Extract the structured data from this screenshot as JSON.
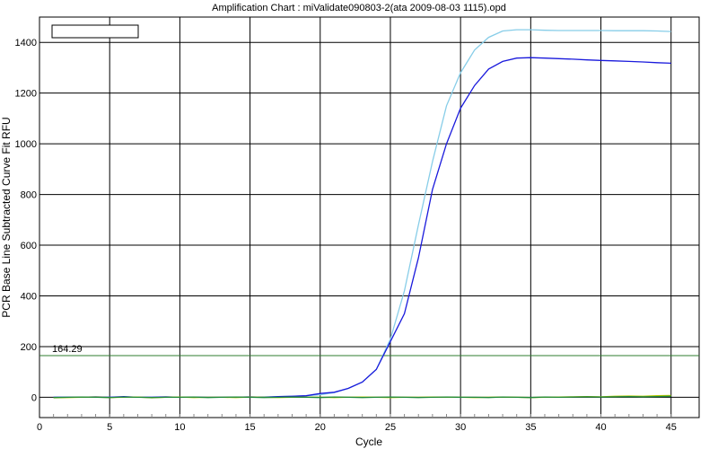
{
  "window": {
    "title": "Amplification Chart : miValidate090803-2(ata 2009-08-03 1115).opd"
  },
  "chart_data": {
    "type": "line",
    "title": "Amplification Chart : miValidate090803-2(ata 2009-08-03 1115).opd",
    "xlabel": "Cycle",
    "ylabel": "PCR Base Line Subtracted Curve Fit RFU",
    "xlim": [
      0,
      47
    ],
    "ylim": [
      -80,
      1500
    ],
    "x_ticks": [
      0,
      5,
      10,
      15,
      20,
      25,
      30,
      35,
      40,
      45
    ],
    "y_ticks": [
      0,
      200,
      400,
      600,
      800,
      1000,
      1200,
      1400
    ],
    "grid": true,
    "legend": "top-left (empty box)",
    "threshold": {
      "value": 164.29,
      "label": "164.29",
      "color": "#2f7d2f"
    },
    "series": [
      {
        "color": "#87cde8",
        "x": [
          1,
          2,
          3,
          4,
          5,
          6,
          7,
          8,
          9,
          10,
          11,
          12,
          13,
          14,
          15,
          16,
          17,
          18,
          19,
          20,
          21,
          22,
          23,
          24,
          25,
          26,
          27,
          28,
          29,
          30,
          31,
          32,
          33,
          34,
          35,
          36,
          37,
          38,
          39,
          40,
          41,
          42,
          43,
          44,
          45
        ],
        "values": [
          0,
          0,
          0,
          0,
          0,
          0,
          0,
          0,
          0,
          0,
          0,
          0,
          0,
          0,
          0,
          2,
          3,
          4,
          6,
          10,
          18,
          35,
          60,
          110,
          230,
          420,
          680,
          930,
          1150,
          1280,
          1370,
          1420,
          1445,
          1450,
          1450,
          1448,
          1447,
          1447,
          1447,
          1447,
          1446,
          1446,
          1446,
          1445,
          1443
        ]
      },
      {
        "color": "#1a1adc",
        "x": [
          1,
          2,
          3,
          4,
          5,
          6,
          7,
          8,
          9,
          10,
          11,
          12,
          13,
          14,
          15,
          16,
          17,
          18,
          19,
          20,
          21,
          22,
          23,
          24,
          25,
          26,
          27,
          28,
          29,
          30,
          31,
          32,
          33,
          34,
          35,
          36,
          37,
          38,
          39,
          40,
          41,
          42,
          43,
          44,
          45
        ],
        "values": [
          0,
          0,
          0,
          2,
          0,
          3,
          0,
          0,
          2,
          0,
          0,
          0,
          0,
          0,
          2,
          0,
          3,
          4,
          6,
          15,
          20,
          35,
          60,
          110,
          220,
          330,
          550,
          820,
          1000,
          1140,
          1230,
          1295,
          1325,
          1338,
          1340,
          1338,
          1336,
          1334,
          1331,
          1329,
          1327,
          1325,
          1323,
          1320,
          1318
        ]
      },
      {
        "color": "#b7c800",
        "x": [
          1,
          2,
          3,
          4,
          5,
          6,
          7,
          8,
          9,
          10,
          11,
          12,
          13,
          14,
          15,
          16,
          17,
          18,
          19,
          20,
          21,
          22,
          23,
          24,
          25,
          26,
          27,
          28,
          29,
          30,
          31,
          32,
          33,
          34,
          35,
          36,
          37,
          38,
          39,
          40,
          41,
          42,
          43,
          44,
          45
        ],
        "values": [
          -2,
          -1,
          0,
          1,
          -1,
          0,
          1,
          -2,
          0,
          1,
          -1,
          0,
          0,
          -1,
          1,
          0,
          -1,
          0,
          1,
          0,
          -1,
          0,
          1,
          0,
          -1,
          0,
          0,
          1,
          0,
          0,
          -1,
          0,
          1,
          0,
          -1,
          0,
          1,
          2,
          3,
          2,
          4,
          5,
          4,
          6,
          7
        ]
      },
      {
        "color": "#1f8a3a",
        "x": [
          1,
          2,
          3,
          4,
          5,
          6,
          7,
          8,
          9,
          10,
          11,
          12,
          13,
          14,
          15,
          16,
          17,
          18,
          19,
          20,
          21,
          22,
          23,
          24,
          25,
          26,
          27,
          28,
          29,
          30,
          31,
          32,
          33,
          34,
          35,
          36,
          37,
          38,
          39,
          40,
          41,
          42,
          43,
          44,
          45
        ],
        "values": [
          -1,
          0,
          1,
          0,
          -1,
          1,
          0,
          -1,
          0,
          0,
          1,
          -1,
          0,
          1,
          0,
          -1,
          0,
          1,
          0,
          -1,
          1,
          0,
          -1,
          0,
          1,
          0,
          -1,
          0,
          1,
          0,
          0,
          -1,
          1,
          0,
          -1,
          1,
          0,
          1,
          2,
          1,
          2,
          3,
          2,
          3,
          4
        ]
      }
    ]
  }
}
